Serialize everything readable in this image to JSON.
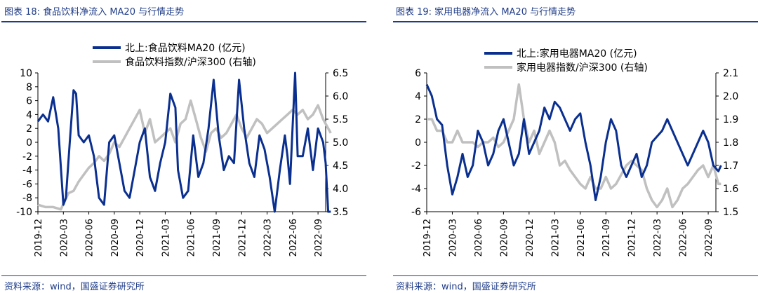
{
  "panels": {
    "left": {
      "title": "图表 18:  食品饮料净流入 MA20 与行情走势",
      "source": "资料来源：wind，国盛证券研究所"
    },
    "right": {
      "title": "图表 19:  家用电器净流入 MA20 与行情走势",
      "source": "资料来源：wind，国盛证券研究所"
    }
  },
  "colors": {
    "flow": "#0a2f8f",
    "index": "#c0c0c0",
    "accent": "#1f3c88"
  },
  "chart_data": [
    {
      "type": "line",
      "x_ticks": [
        "2019-12",
        "2020-03",
        "2020-06",
        "2020-09",
        "2020-12",
        "2021-03",
        "2021-06",
        "2021-09",
        "2021-12",
        "2022-03",
        "2022-06",
        "2022-09"
      ],
      "ylim": [
        -10,
        10
      ],
      "y_ticks": [
        "10",
        "8",
        "6",
        "4",
        "2",
        "0",
        "-2",
        "-4",
        "-6",
        "-8",
        "-10"
      ],
      "y2lim": [
        3.5,
        6.5
      ],
      "y2_ticks": [
        "6.5",
        "6.0",
        "5.5",
        "5.0",
        "4.5",
        "4.0",
        "3.5"
      ],
      "legend": [
        "北上:食品饮料MA20 (亿元)",
        "食品饮料指数/沪深300 (右轴)"
      ],
      "series": [
        {
          "name": "北上:食品饮料MA20 (亿元)",
          "axis": "left",
          "x": [
            0,
            0.2,
            0.4,
            0.6,
            0.8,
            1.0,
            1.1,
            1.25,
            1.4,
            1.5,
            1.6,
            1.8,
            2.0,
            2.2,
            2.4,
            2.6,
            2.8,
            3.0,
            3.2,
            3.4,
            3.6,
            3.8,
            4.0,
            4.2,
            4.4,
            4.6,
            4.8,
            5.0,
            5.2,
            5.4,
            5.5,
            5.7,
            5.9,
            6.1,
            6.3,
            6.5,
            6.7,
            6.9,
            7.1,
            7.3,
            7.5,
            7.7,
            7.9,
            8.1,
            8.3,
            8.5,
            8.7,
            8.9,
            9.1,
            9.3,
            9.5,
            9.7,
            9.8,
            9.9,
            10.0,
            10.1,
            10.2,
            10.4,
            10.6,
            10.8,
            11.0,
            11.2,
            11.3,
            11.4,
            11.5
          ],
          "values": [
            3,
            4,
            3,
            6.5,
            2,
            -9,
            -8,
            0,
            7.5,
            7,
            1,
            0,
            1,
            -2,
            -8,
            -9,
            0,
            1,
            -3,
            -7,
            -8,
            -4,
            0,
            2,
            -5,
            -7,
            -3,
            0,
            7,
            5,
            -4,
            -8,
            -7,
            1,
            -5,
            -3,
            2,
            9,
            1,
            -4,
            -2,
            -3,
            9,
            2,
            -3,
            -5,
            1,
            -1,
            -5,
            -10,
            -4,
            1,
            -2,
            -6,
            2,
            10,
            -2,
            -2,
            2,
            -4,
            2,
            0,
            -3,
            -10,
            -10
          ]
        },
        {
          "name": "食品饮料指数/沪深300 (右轴)",
          "axis": "right",
          "x": [
            0,
            0.3,
            0.6,
            0.9,
            1.2,
            1.4,
            1.6,
            1.8,
            2.0,
            2.2,
            2.4,
            2.6,
            2.8,
            3.0,
            3.2,
            3.4,
            3.6,
            3.8,
            4.0,
            4.2,
            4.4,
            4.6,
            4.8,
            5.0,
            5.2,
            5.4,
            5.6,
            5.8,
            6.0,
            6.2,
            6.4,
            6.6,
            6.8,
            7.0,
            7.2,
            7.4,
            7.6,
            7.8,
            8.0,
            8.2,
            8.4,
            8.6,
            8.8,
            9.0,
            9.2,
            9.4,
            9.6,
            9.8,
            10.0,
            10.2,
            10.4,
            10.6,
            10.8,
            11.0,
            11.2,
            11.4,
            11.5
          ],
          "values": [
            3.65,
            3.6,
            3.6,
            3.55,
            3.9,
            3.95,
            4.15,
            4.3,
            4.45,
            4.55,
            4.7,
            4.6,
            4.75,
            5.0,
            4.9,
            5.1,
            5.3,
            5.5,
            5.7,
            5.2,
            5.5,
            5.0,
            5.1,
            5.2,
            5.3,
            5.0,
            5.4,
            5.5,
            5.9,
            5.5,
            5.1,
            4.8,
            5.2,
            5.3,
            5.1,
            5.2,
            5.4,
            5.6,
            5.3,
            5.1,
            5.3,
            5.5,
            5.4,
            5.2,
            5.3,
            5.4,
            5.5,
            5.6,
            5.7,
            5.6,
            5.7,
            5.5,
            5.6,
            5.8,
            5.5,
            5.3,
            5.2
          ]
        }
      ]
    },
    {
      "type": "line",
      "x_ticks": [
        "2019-12",
        "2020-03",
        "2020-06",
        "2020-09",
        "2020-12",
        "2021-03",
        "2021-06",
        "2021-09",
        "2021-12",
        "2022-03",
        "2022-06",
        "2022-09"
      ],
      "ylim": [
        -6,
        6
      ],
      "y_ticks": [
        "6",
        "4",
        "2",
        "0",
        "-2",
        "-4",
        "-6"
      ],
      "y2lim": [
        1.5,
        2.1
      ],
      "y2_ticks": [
        "2.1",
        "2.0",
        "1.9",
        "1.8",
        "1.7",
        "1.6",
        "1.5"
      ],
      "legend": [
        "北上:家用电器MA20 (亿元)",
        "家用电器指数/沪深300 (右轴)"
      ],
      "series": [
        {
          "name": "北上:家用电器MA20 (亿元)",
          "axis": "left",
          "x": [
            0,
            0.2,
            0.4,
            0.6,
            0.8,
            1.0,
            1.2,
            1.4,
            1.6,
            1.8,
            2.0,
            2.2,
            2.4,
            2.6,
            2.8,
            3.0,
            3.2,
            3.4,
            3.6,
            3.8,
            4.0,
            4.2,
            4.4,
            4.6,
            4.8,
            5.0,
            5.2,
            5.4,
            5.6,
            5.8,
            6.0,
            6.2,
            6.4,
            6.6,
            6.8,
            7.0,
            7.2,
            7.4,
            7.6,
            7.8,
            8.0,
            8.2,
            8.4,
            8.6,
            8.8,
            9.0,
            9.2,
            9.4,
            9.6,
            9.8,
            10.0,
            10.2,
            10.4,
            10.6,
            10.8,
            11.0,
            11.2,
            11.4,
            11.5
          ],
          "values": [
            5,
            4,
            2,
            1.5,
            -2,
            -4.5,
            -3,
            -1,
            -3,
            -2,
            1,
            0,
            -2,
            -1,
            1,
            2,
            0,
            -2,
            -1,
            2,
            -1,
            0,
            1,
            3,
            2,
            3.5,
            3,
            2,
            1,
            2,
            2.5,
            0,
            -2,
            -5,
            -3,
            0,
            2,
            1,
            -2,
            -3,
            -2,
            -1,
            -3,
            -2,
            0,
            0.5,
            1,
            2,
            1,
            0,
            -1,
            -2,
            -1,
            0,
            1,
            0,
            -2,
            -2.5,
            -2
          ]
        },
        {
          "name": "家用电器指数/沪深300 (右轴)",
          "axis": "right",
          "x": [
            0,
            0.2,
            0.4,
            0.6,
            0.8,
            1.0,
            1.2,
            1.4,
            1.6,
            1.8,
            2.0,
            2.2,
            2.4,
            2.6,
            2.8,
            3.0,
            3.2,
            3.4,
            3.6,
            3.8,
            4.0,
            4.2,
            4.4,
            4.6,
            4.8,
            5.0,
            5.2,
            5.4,
            5.6,
            5.8,
            6.0,
            6.2,
            6.4,
            6.6,
            6.8,
            7.0,
            7.2,
            7.4,
            7.6,
            7.8,
            8.0,
            8.2,
            8.4,
            8.6,
            8.8,
            9.0,
            9.2,
            9.4,
            9.6,
            9.8,
            10.0,
            10.2,
            10.4,
            10.6,
            10.8,
            11.0,
            11.2,
            11.4,
            11.5
          ],
          "values": [
            1.9,
            1.9,
            1.85,
            1.85,
            1.8,
            1.8,
            1.85,
            1.8,
            1.8,
            1.8,
            1.78,
            1.8,
            1.8,
            1.82,
            1.78,
            1.8,
            1.85,
            1.9,
            2.05,
            1.9,
            1.8,
            1.85,
            1.75,
            1.8,
            1.85,
            1.8,
            1.7,
            1.72,
            1.68,
            1.65,
            1.62,
            1.6,
            1.65,
            1.6,
            1.6,
            1.65,
            1.6,
            1.62,
            1.66,
            1.7,
            1.72,
            1.7,
            1.68,
            1.6,
            1.55,
            1.52,
            1.55,
            1.6,
            1.52,
            1.55,
            1.6,
            1.62,
            1.65,
            1.68,
            1.7,
            1.65,
            1.7,
            1.62,
            1.62
          ]
        }
      ]
    }
  ]
}
